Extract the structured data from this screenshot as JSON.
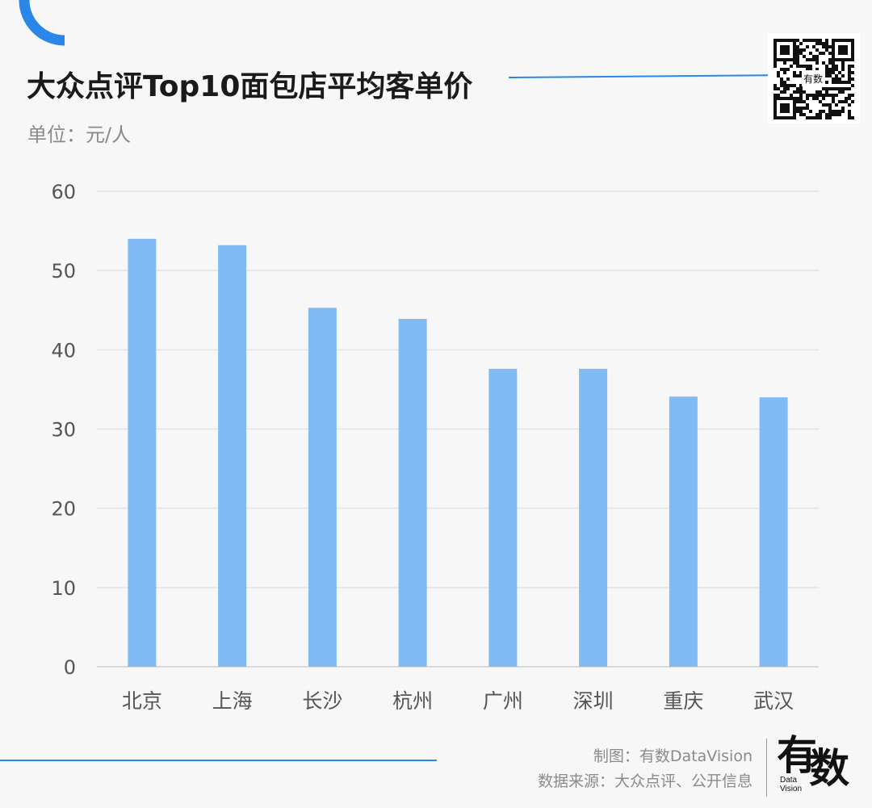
{
  "title": "大众点评Top10面包店平均客单价",
  "unit": "单位：元/人",
  "qr_overlay_text": "有数",
  "footer": {
    "maker": "制图：有数DataVision",
    "source": "数据来源：大众点评、公开信息",
    "logo_text_1": "有",
    "logo_text_2": "数",
    "logo_sub_1": "Data",
    "logo_sub_2": "Vision"
  },
  "colors": {
    "accent": "#2a86e8",
    "bar": "#82baf8",
    "grid": "#e3e3e3",
    "axis_text": "#555555"
  },
  "chart_data": {
    "type": "bar",
    "categories": [
      "北京",
      "上海",
      "长沙",
      "杭州",
      "广州",
      "深圳",
      "重庆",
      "武汉"
    ],
    "values": [
      54.0,
      53.2,
      45.3,
      43.9,
      37.6,
      37.6,
      34.1,
      34.0
    ],
    "title": "大众点评Top10面包店平均客单价",
    "ylabel": "",
    "xlabel": "",
    "ylim": [
      0,
      60
    ],
    "yticks": [
      0,
      10,
      20,
      30,
      40,
      50,
      60
    ],
    "grid": true,
    "legend": "none"
  }
}
